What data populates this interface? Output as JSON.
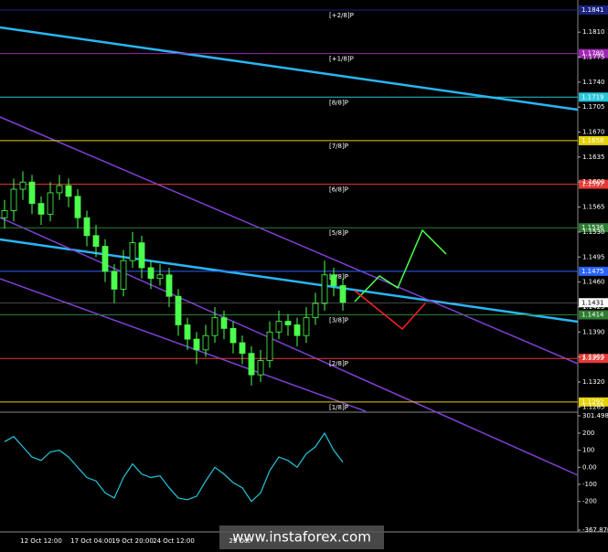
{
  "chart_data": {
    "type": "candlestick",
    "open": [
      1.155,
      1.156,
      1.159,
      1.16,
      1.157,
      1.1555,
      1.1585,
      1.1595,
      1.158,
      1.155,
      1.1525,
      1.151,
      1.1475,
      1.145,
      1.149,
      1.1515,
      1.148,
      1.1465,
      1.147,
      1.144,
      1.14,
      1.138,
      1.1365,
      1.1385,
      1.141,
      1.1395,
      1.1375,
      1.136,
      1.133,
      1.135,
      1.139,
      1.1405,
      1.14,
      1.1385,
      1.141,
      1.143,
      1.147,
      1.1455
    ],
    "high": [
      1.1575,
      1.1605,
      1.1615,
      1.161,
      1.158,
      1.16,
      1.161,
      1.1605,
      1.159,
      1.156,
      1.154,
      1.152,
      1.1485,
      1.1505,
      1.153,
      1.1525,
      1.149,
      1.1485,
      1.148,
      1.145,
      1.141,
      1.139,
      1.14,
      1.1425,
      1.142,
      1.1405,
      1.1385,
      1.137,
      1.1365,
      1.1405,
      1.142,
      1.1415,
      1.141,
      1.1425,
      1.1445,
      1.149,
      1.148,
      1.1465
    ],
    "low": [
      1.1535,
      1.1545,
      1.1575,
      1.1555,
      1.154,
      1.1545,
      1.1575,
      1.1565,
      1.1535,
      1.151,
      1.1495,
      1.146,
      1.143,
      1.144,
      1.148,
      1.1465,
      1.145,
      1.1455,
      1.1425,
      1.1385,
      1.1365,
      1.1345,
      1.1355,
      1.1375,
      1.138,
      1.136,
      1.1345,
      1.1315,
      1.132,
      1.134,
      1.138,
      1.1385,
      1.137,
      1.1375,
      1.14,
      1.142,
      1.144,
      1.142
    ],
    "close": [
      1.156,
      1.159,
      1.16,
      1.157,
      1.1555,
      1.1585,
      1.1595,
      1.158,
      1.155,
      1.1525,
      1.151,
      1.1475,
      1.145,
      1.149,
      1.1515,
      1.148,
      1.1465,
      1.147,
      1.144,
      1.14,
      1.138,
      1.1365,
      1.1385,
      1.141,
      1.1395,
      1.1375,
      1.136,
      1.133,
      1.135,
      1.139,
      1.1405,
      1.14,
      1.1385,
      1.141,
      1.143,
      1.147,
      1.1455,
      1.1431
    ],
    "ylim": [
      1.1279,
      1.1855
    ],
    "yticks": [
      {
        "value": 1.181,
        "label": "1.1810"
      },
      1.1775,
      {
        "value": 1.174,
        "label": "1.1740"
      },
      1.1705,
      {
        "value": 1.167,
        "label": "1.1670"
      },
      1.1635,
      {
        "value": 1.16,
        "label": "1.1600"
      },
      1.1565,
      {
        "value": 1.153,
        "label": "1.1530"
      },
      1.1495,
      {
        "value": 1.146,
        "label": "1.1460"
      },
      1.1425,
      {
        "value": 1.139,
        "label": "1.1390"
      },
      1.1355,
      {
        "value": 1.132,
        "label": "1.1320"
      },
      1.1285
    ],
    "levels": [
      {
        "name": "[+2/8]P",
        "value": 1.1841,
        "color": "#1a237e"
      },
      {
        "name": "[+1/8]P",
        "value": 1.178,
        "label": "1.1780",
        "color": "#9c27b0"
      },
      {
        "name": "[8/8]P",
        "value": 1.1719,
        "color": "#26c6da"
      },
      {
        "name": "[7/8]P",
        "value": 1.1658,
        "color": "#e6d200"
      },
      {
        "name": "[6/8]P",
        "value": 1.1597,
        "color": "#e53935"
      },
      {
        "name": "[5/8]P",
        "value": 1.1536,
        "color": "#2e7d32"
      },
      {
        "name": "[4/8]P",
        "value": 1.1475,
        "color": "#2962ff"
      },
      {
        "name": "[3/8]P",
        "value": 1.1414,
        "color": "#2e7d32"
      },
      {
        "name": "[2/8]P",
        "value": 1.1353,
        "color": "#e53935"
      },
      {
        "name": "[1/8]P",
        "value": 1.1292,
        "color": "#e6d200"
      }
    ],
    "current_price": 1.1431,
    "indicator": {
      "values": [
        150,
        180,
        120,
        60,
        40,
        90,
        100,
        60,
        0,
        -60,
        -80,
        -150,
        -180,
        -60,
        20,
        -40,
        -60,
        -50,
        -120,
        -180,
        -190,
        -170,
        -80,
        0,
        -40,
        -90,
        -120,
        -200,
        -150,
        -20,
        60,
        40,
        0,
        80,
        120,
        200,
        100,
        30
      ],
      "ylim": [
        -367.87,
        301.498
      ],
      "yticks": [
        301.498,
        200,
        100,
        {
          "value": 0,
          "label": "0.00"
        },
        -100,
        -200,
        {
          "value": -367.87,
          "label": "-367.870"
        }
      ]
    },
    "x_labels": [
      "12 Oct 12:00",
      "17 Oct 04:00",
      "19 Oct 20:00",
      "24 Oct 12:00",
      "29 Oct"
    ],
    "watermark": "www.instaforex.com"
  }
}
